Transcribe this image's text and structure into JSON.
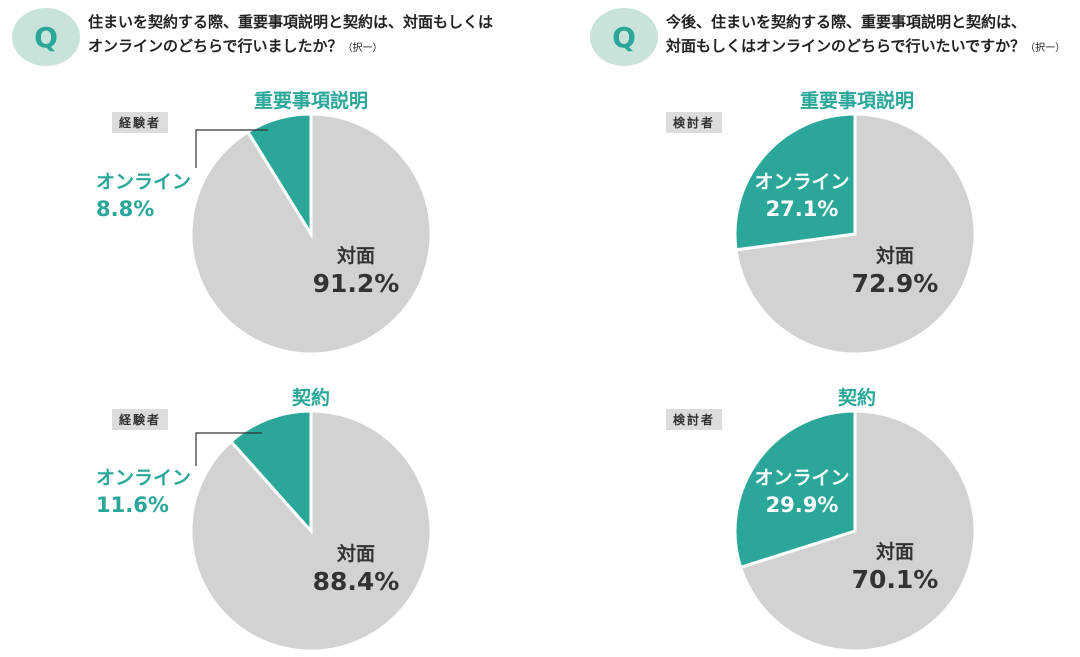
{
  "questions": [
    {
      "badge": "Q",
      "line1": "住まいを契約する際、重要事項説明と契約は、対面もしくは",
      "line2": "オンラインのどちらで行いましたか？",
      "note": "（択一）"
    },
    {
      "badge": "Q",
      "line1": "今後、住まいを契約する際、重要事項説明と契約は、",
      "line2": "対面もしくはオンラインのどちらで行いたいですか？",
      "note": "（択一）"
    }
  ],
  "colors": {
    "online": "#2aa798",
    "face": "#d2d2d3",
    "accent": "#2aa798",
    "text": "#333333"
  },
  "chart_data": [
    {
      "type": "pie",
      "title": "重要事項説明",
      "group": "経験者",
      "slices": [
        {
          "label": "オンライン",
          "value": 8.8,
          "display": "8.8%"
        },
        {
          "label": "対面",
          "value": 91.2,
          "display": "91.2%"
        }
      ]
    },
    {
      "type": "pie",
      "title": "重要事項説明",
      "group": "検討者",
      "slices": [
        {
          "label": "オンライン",
          "value": 27.1,
          "display": "27.1%"
        },
        {
          "label": "対面",
          "value": 72.9,
          "display": "72.9%"
        }
      ]
    },
    {
      "type": "pie",
      "title": "契約",
      "group": "経験者",
      "slices": [
        {
          "label": "オンライン",
          "value": 11.6,
          "display": "11.6%"
        },
        {
          "label": "対面",
          "value": 88.4,
          "display": "88.4%"
        }
      ]
    },
    {
      "type": "pie",
      "title": "契約",
      "group": "検討者",
      "slices": [
        {
          "label": "オンライン",
          "value": 29.9,
          "display": "29.9%"
        },
        {
          "label": "対面",
          "value": 70.1,
          "display": "70.1%"
        }
      ]
    }
  ]
}
